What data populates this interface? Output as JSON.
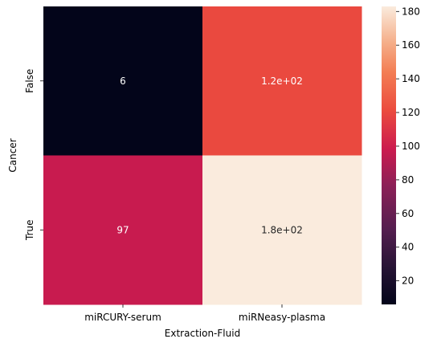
{
  "chart_data": {
    "type": "heatmap",
    "title": "",
    "xlabel": "Extraction-Fluid",
    "ylabel": "Cancer",
    "x_categories": [
      "miRCURY-serum",
      "miRNeasy-plasma"
    ],
    "y_categories": [
      "False",
      "True"
    ],
    "values": [
      [
        6,
        120
      ],
      [
        97,
        183
      ]
    ],
    "cell_labels": [
      [
        "6",
        "1.2e+02"
      ],
      [
        "97",
        "1.8e+02"
      ]
    ],
    "colormap": "rocket",
    "colorbar": {
      "vmin": 6,
      "vmax": 183,
      "ticks": [
        20,
        40,
        60,
        80,
        100,
        120,
        140,
        160,
        180
      ],
      "tick_labels": [
        "20",
        "40",
        "60",
        "80",
        "100",
        "120",
        "140",
        "160",
        "180"
      ]
    },
    "grid": false,
    "legend": "colorbar-right"
  }
}
